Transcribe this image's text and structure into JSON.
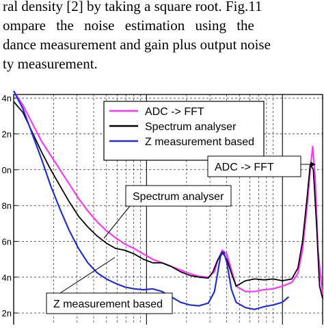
{
  "paper_text": {
    "lines": [
      "ral density [2] by taking a square root. Fig.11",
      "ompare the noise estimation using the",
      "dance measurement and gain plus output noise",
      "ty measurement."
    ]
  },
  "chart_data": {
    "type": "line",
    "title": "",
    "xlabel": "",
    "ylabel": "",
    "y_tick_labels": [
      "2n",
      "4n",
      "6n",
      "8n",
      "0n",
      "2n",
      "4n"
    ],
    "ylim": [
      1.2,
      14.2
    ],
    "xlim": [
      0,
      100
    ],
    "grid": true,
    "legend": {
      "placement": "top-center",
      "entries": [
        "ADC -> FFT",
        "Spectrum analyser",
        "Z measurement based"
      ]
    },
    "annotations": [
      "ADC -> FFT",
      "Spectrum analyser",
      "Z measurement based"
    ],
    "series": [
      {
        "name": "ADC -> FFT",
        "color": "#ff33ff",
        "x": [
          0,
          3,
          6,
          9,
          12,
          15,
          18,
          21,
          24,
          27,
          30,
          33,
          36,
          39,
          42,
          45,
          48,
          51,
          54,
          57,
          60,
          63,
          65,
          66,
          67.5,
          69,
          70.5,
          72,
          75,
          78,
          81,
          84,
          87,
          90,
          92,
          93.5,
          95,
          96,
          96.8,
          97.6,
          98.5,
          100
        ],
        "y": [
          14.4,
          13.6,
          12.6,
          11.6,
          10.8,
          10.0,
          9.2,
          8.4,
          7.7,
          7.1,
          6.6,
          6.2,
          5.85,
          5.6,
          5.3,
          5.0,
          4.8,
          4.6,
          4.4,
          4.2,
          4.05,
          4.0,
          4.3,
          4.9,
          5.5,
          5.3,
          4.4,
          3.5,
          3.2,
          3.2,
          3.3,
          3.35,
          3.5,
          3.7,
          4.2,
          5.5,
          8.0,
          10.0,
          11.3,
          9.5,
          5.5,
          3.0
        ]
      },
      {
        "name": "Spectrum analyser",
        "color": "#000000",
        "x": [
          0,
          3,
          6,
          9,
          12,
          15,
          18,
          21,
          24,
          27,
          30,
          33,
          36,
          39,
          42,
          45,
          48,
          51,
          54,
          57,
          60,
          63,
          64.5,
          66,
          67.5,
          69,
          70.5,
          72,
          75,
          78,
          81,
          84,
          87,
          90,
          92,
          93.5,
          95,
          96,
          97,
          98,
          99,
          100
        ],
        "y": [
          13.8,
          13.2,
          12.1,
          11.0,
          10.0,
          9.1,
          8.2,
          7.4,
          6.8,
          6.3,
          5.9,
          5.6,
          5.5,
          5.3,
          5.0,
          4.8,
          4.8,
          4.6,
          4.3,
          4.1,
          4.0,
          3.95,
          4.3,
          4.95,
          5.4,
          5.0,
          4.2,
          3.5,
          3.8,
          3.9,
          3.85,
          3.9,
          3.8,
          3.9,
          4.5,
          6.0,
          8.5,
          10.3,
          10.0,
          7.0,
          3.5,
          2.8
        ]
      },
      {
        "name": "Z measurement based",
        "color": "#1f2fd8",
        "x": [
          0,
          3,
          6,
          9,
          12,
          15,
          18,
          21,
          24,
          27,
          30,
          33,
          36,
          39,
          42,
          45,
          48,
          51,
          54,
          57,
          60,
          63,
          65,
          66,
          67,
          68,
          69,
          70.5,
          72,
          75,
          78,
          81,
          84,
          87,
          89
        ],
        "y": [
          14.4,
          13.4,
          12.0,
          10.6,
          9.1,
          7.8,
          6.6,
          5.6,
          4.8,
          4.25,
          3.9,
          3.65,
          3.45,
          3.35,
          3.3,
          3.35,
          3.2,
          2.9,
          2.6,
          2.45,
          2.4,
          2.55,
          3.2,
          4.2,
          5.2,
          5.4,
          4.8,
          3.3,
          2.6,
          2.3,
          2.2,
          2.35,
          2.45,
          2.6,
          2.9
        ]
      }
    ]
  }
}
